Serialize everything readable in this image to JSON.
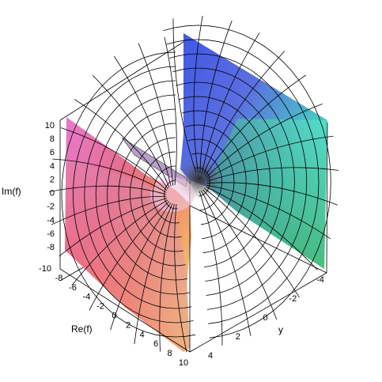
{
  "chart_data": {
    "type": "surface3d",
    "title": "",
    "zlabel": "Im(f)",
    "xlabel": "Re(f)",
    "ylabel": "y",
    "z_ticks": [
      "10",
      "8",
      "6",
      "4",
      "2",
      "0",
      "-2",
      "-4",
      "-6",
      "-8"
    ],
    "x_ticks": [
      "-10",
      "-8",
      "-6",
      "-4",
      "-2",
      "0",
      "2",
      "4",
      "6",
      "8",
      "10"
    ],
    "y_ticks": [
      "4",
      "2",
      "0",
      "-2",
      "-4"
    ],
    "zlim": [
      -10,
      10
    ],
    "xlim": [
      -10,
      10
    ],
    "ylim": [
      -4,
      4
    ],
    "grid": false,
    "legend": "none",
    "colors": {
      "front_left": "#e66e8c",
      "front_mid": "#f7b06a",
      "front_low": "#f5d46a",
      "back_top": "#5b6fe0",
      "back_mid": "#49c7c4",
      "back_low": "#4fd768",
      "spike": "#b79fc6",
      "mesh": "#000000",
      "box": "#000000"
    }
  }
}
